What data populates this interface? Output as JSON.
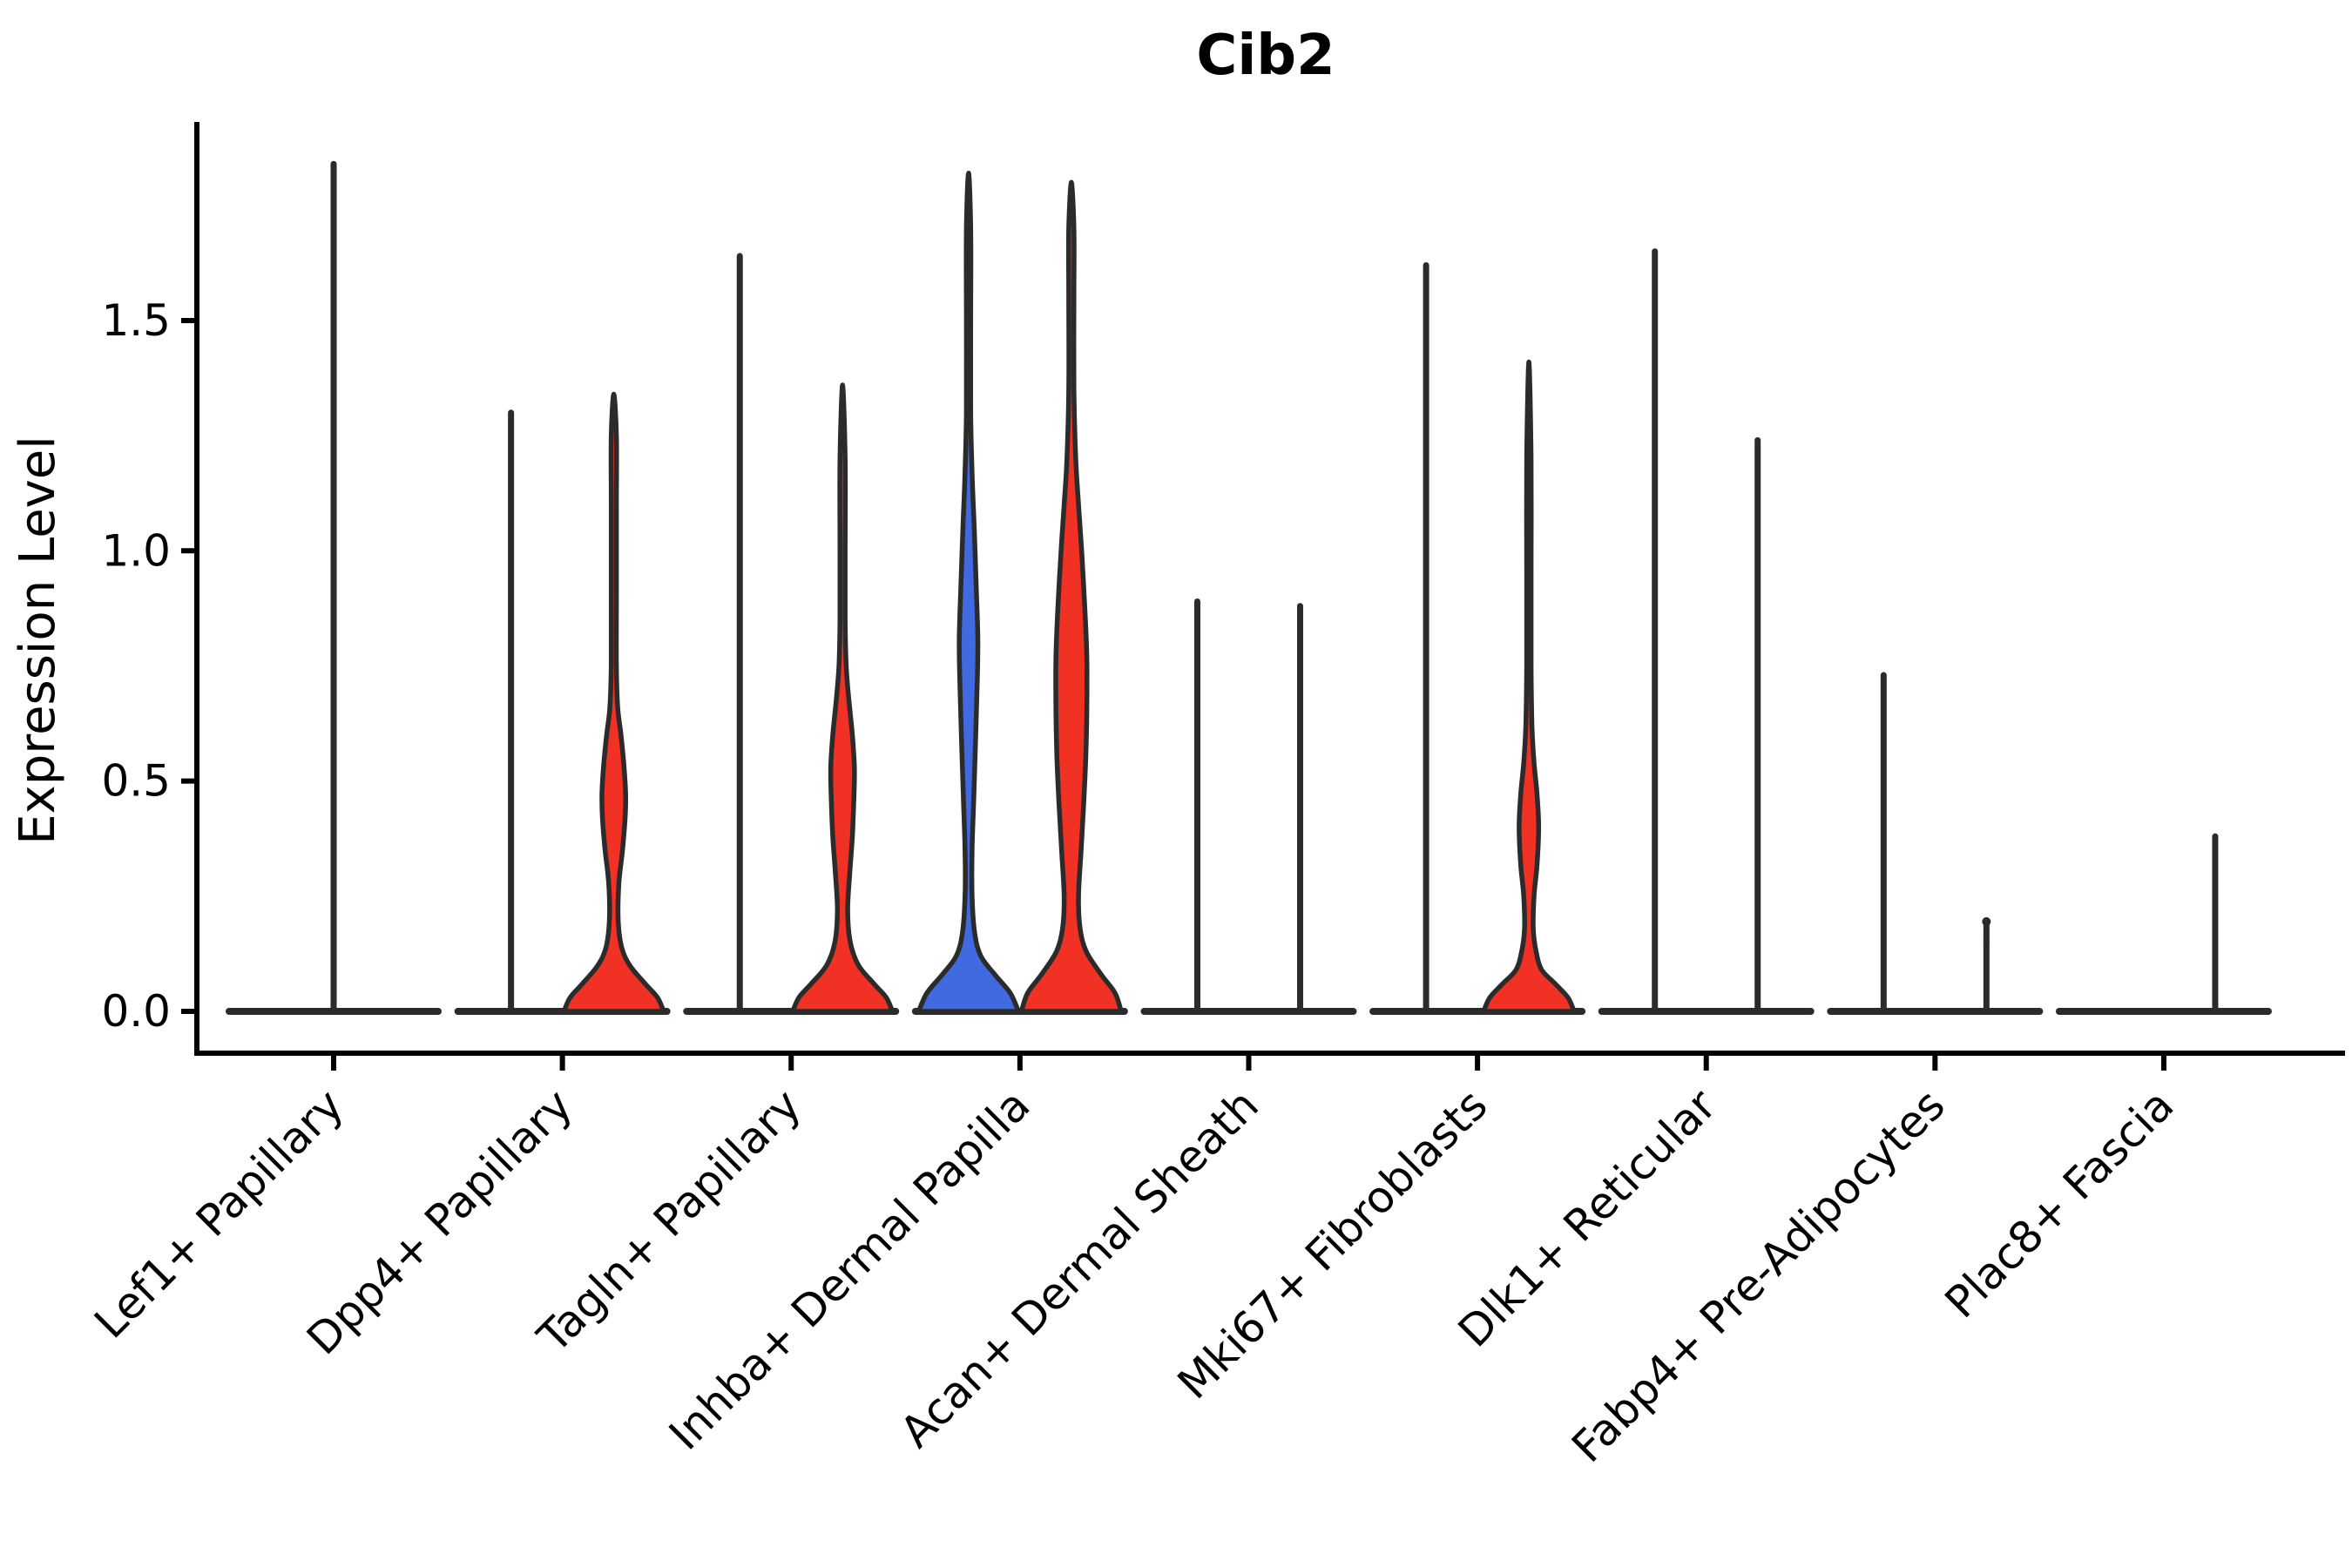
{
  "title": "Cib2",
  "y_axis": {
    "label": "Expression Level",
    "tick_labels": [
      "0.0",
      "0.5",
      "1.0",
      "1.5"
    ],
    "tick_values": [
      0,
      0.5,
      1.0,
      1.5
    ]
  },
  "x_axis": {
    "categories": [
      "Lef1+ Papillary",
      "Dpp4+ Papillary",
      "Tagln+ Papillary",
      "Inhba+ Dermal Papilla",
      "Acan+ Dermal Sheath",
      "Mki67+ Fibroblasts",
      "Dlk1+ Reticular",
      "Fabp4+ Pre-Adipocytes",
      "Plac8+ Fascia"
    ]
  },
  "colors": {
    "red_fill": "#F23125",
    "blue_fill": "#4169E0",
    "outline": "#2b2b2b",
    "background": "#ffffff"
  },
  "chart_data": {
    "type": "violin",
    "title": "Cib2",
    "xlabel": "",
    "ylabel": "Expression Level",
    "ylim": [
      0,
      1.93
    ],
    "yticks": [
      0,
      0.5,
      1.0,
      1.5
    ],
    "grid": false,
    "legend": "none",
    "categories": [
      "Lef1+ Papillary",
      "Dpp4+ Papillary",
      "Tagln+ Papillary",
      "Inhba+ Dermal Papilla",
      "Acan+ Dermal Sheath",
      "Mki67+ Fibroblasts",
      "Dlk1+ Reticular",
      "Fabp4+ Pre-Adipocytes",
      "Plac8+ Fascia"
    ],
    "description": "Split violin plot of Cib2 expression; most violins collapse to thin zero-density spikes; filled violins (red, one blue) show non-zero density bulges.",
    "violins": [
      {
        "category_index": 0,
        "category": "Lef1+ Papillary",
        "side": "center",
        "offset": 0,
        "fill": "none",
        "max_expression": 1.84,
        "shape": "spike"
      },
      {
        "category_index": 1,
        "category": "Dpp4+ Papillary",
        "side": "left",
        "offset": -1,
        "fill": "none",
        "max_expression": 1.3,
        "shape": "spike"
      },
      {
        "category_index": 1,
        "category": "Dpp4+ Papillary",
        "side": "right",
        "offset": 1,
        "fill": "red",
        "max_expression": 1.34,
        "shape": "filled",
        "profile": [
          [
            0,
            0.97
          ],
          [
            0.03,
            0.85
          ],
          [
            0.06,
            0.61
          ],
          [
            0.1,
            0.31
          ],
          [
            0.14,
            0.15
          ],
          [
            0.2,
            0.085
          ],
          [
            0.28,
            0.1
          ],
          [
            0.35,
            0.17
          ],
          [
            0.42,
            0.22
          ],
          [
            0.47,
            0.23
          ],
          [
            0.53,
            0.2
          ],
          [
            0.6,
            0.14
          ],
          [
            0.66,
            0.076
          ],
          [
            0.75,
            0.05
          ],
          [
            0.9,
            0.05
          ],
          [
            1.1,
            0.05
          ],
          [
            1.25,
            0.05
          ],
          [
            1.34,
            0
          ]
        ]
      },
      {
        "category_index": 2,
        "category": "Tagln+ Papillary",
        "side": "left",
        "offset": -1,
        "fill": "none",
        "max_expression": 1.64,
        "shape": "spike"
      },
      {
        "category_index": 2,
        "category": "Tagln+ Papillary",
        "side": "right",
        "offset": 1,
        "fill": "red",
        "max_expression": 1.36,
        "shape": "filled",
        "profile": [
          [
            0,
            0.97
          ],
          [
            0.03,
            0.85
          ],
          [
            0.06,
            0.61
          ],
          [
            0.1,
            0.31
          ],
          [
            0.15,
            0.15
          ],
          [
            0.22,
            0.1
          ],
          [
            0.3,
            0.14
          ],
          [
            0.38,
            0.19
          ],
          [
            0.46,
            0.22
          ],
          [
            0.53,
            0.23
          ],
          [
            0.6,
            0.19
          ],
          [
            0.68,
            0.12
          ],
          [
            0.75,
            0.07
          ],
          [
            0.85,
            0.05
          ],
          [
            1.0,
            0.05
          ],
          [
            1.2,
            0.05
          ],
          [
            1.36,
            0
          ]
        ]
      },
      {
        "category_index": 3,
        "category": "Inhba+ Dermal Papilla",
        "side": "left",
        "offset": -1,
        "fill": "blue",
        "max_expression": 1.82,
        "shape": "filled",
        "profile": [
          [
            0,
            0.97
          ],
          [
            0.04,
            0.81
          ],
          [
            0.08,
            0.51
          ],
          [
            0.12,
            0.24
          ],
          [
            0.17,
            0.12
          ],
          [
            0.25,
            0.068
          ],
          [
            0.35,
            0.068
          ],
          [
            0.46,
            0.1
          ],
          [
            0.6,
            0.14
          ],
          [
            0.72,
            0.17
          ],
          [
            0.81,
            0.18
          ],
          [
            0.92,
            0.15
          ],
          [
            1.05,
            0.11
          ],
          [
            1.17,
            0.068
          ],
          [
            1.3,
            0.042
          ],
          [
            1.5,
            0.042
          ],
          [
            1.7,
            0.042
          ],
          [
            1.82,
            0
          ]
        ]
      },
      {
        "category_index": 3,
        "category": "Inhba+ Dermal Papilla",
        "side": "right",
        "offset": 1,
        "fill": "red",
        "max_expression": 1.8,
        "shape": "filled",
        "profile": [
          [
            0,
            0.97
          ],
          [
            0.04,
            0.85
          ],
          [
            0.08,
            0.58
          ],
          [
            0.13,
            0.29
          ],
          [
            0.18,
            0.17
          ],
          [
            0.25,
            0.14
          ],
          [
            0.35,
            0.19
          ],
          [
            0.45,
            0.24
          ],
          [
            0.55,
            0.28
          ],
          [
            0.65,
            0.3
          ],
          [
            0.77,
            0.3
          ],
          [
            0.88,
            0.26
          ],
          [
            1.0,
            0.2
          ],
          [
            1.1,
            0.14
          ],
          [
            1.2,
            0.085
          ],
          [
            1.35,
            0.05
          ],
          [
            1.55,
            0.05
          ],
          [
            1.7,
            0.05
          ],
          [
            1.8,
            0
          ]
        ]
      },
      {
        "category_index": 4,
        "category": "Acan+ Dermal Sheath",
        "side": "left",
        "offset": -1,
        "fill": "none",
        "max_expression": 0.89,
        "shape": "spike"
      },
      {
        "category_index": 4,
        "category": "Acan+ Dermal Sheath",
        "side": "right",
        "offset": 1,
        "fill": "none",
        "max_expression": 0.88,
        "shape": "spike"
      },
      {
        "category_index": 5,
        "category": "Mki67+ Fibroblasts",
        "side": "left",
        "offset": -1,
        "fill": "none",
        "max_expression": 1.62,
        "shape": "spike"
      },
      {
        "category_index": 5,
        "category": "Mki67+ Fibroblasts",
        "side": "right",
        "offset": 1,
        "fill": "red",
        "max_expression": 1.41,
        "shape": "filled",
        "profile": [
          [
            0,
            0.88
          ],
          [
            0.03,
            0.76
          ],
          [
            0.06,
            0.51
          ],
          [
            0.09,
            0.25
          ],
          [
            0.13,
            0.14
          ],
          [
            0.18,
            0.085
          ],
          [
            0.25,
            0.1
          ],
          [
            0.32,
            0.16
          ],
          [
            0.4,
            0.19
          ],
          [
            0.47,
            0.16
          ],
          [
            0.54,
            0.1
          ],
          [
            0.62,
            0.06
          ],
          [
            0.75,
            0.042
          ],
          [
            0.95,
            0.042
          ],
          [
            1.2,
            0.042
          ],
          [
            1.41,
            0
          ]
        ]
      },
      {
        "category_index": 6,
        "category": "Dlk1+ Reticular",
        "side": "left",
        "offset": -1,
        "fill": "none",
        "max_expression": 1.65,
        "shape": "spike"
      },
      {
        "category_index": 6,
        "category": "Dlk1+ Reticular",
        "side": "right",
        "offset": 1,
        "fill": "none",
        "max_expression": 1.24,
        "shape": "spike"
      },
      {
        "category_index": 7,
        "category": "Fabp4+ Pre-Adipocytes",
        "side": "left",
        "offset": -1,
        "fill": "none",
        "max_expression": 0.73,
        "shape": "spike"
      },
      {
        "category_index": 7,
        "category": "Fabp4+ Pre-Adipocytes",
        "side": "right",
        "offset": 1,
        "fill": "none",
        "max_expression": 0.195,
        "shape": "spike",
        "outlier_dots": [
          0.195,
          0.168,
          0.15
        ]
      },
      {
        "category_index": 8,
        "category": "Plac8+ Fascia",
        "side": "left",
        "offset": -1,
        "fill": "none",
        "max_expression": 0,
        "shape": "flat"
      },
      {
        "category_index": 8,
        "category": "Plac8+ Fascia",
        "side": "right",
        "offset": 1,
        "fill": "none",
        "max_expression": 0.38,
        "shape": "spike"
      }
    ]
  }
}
